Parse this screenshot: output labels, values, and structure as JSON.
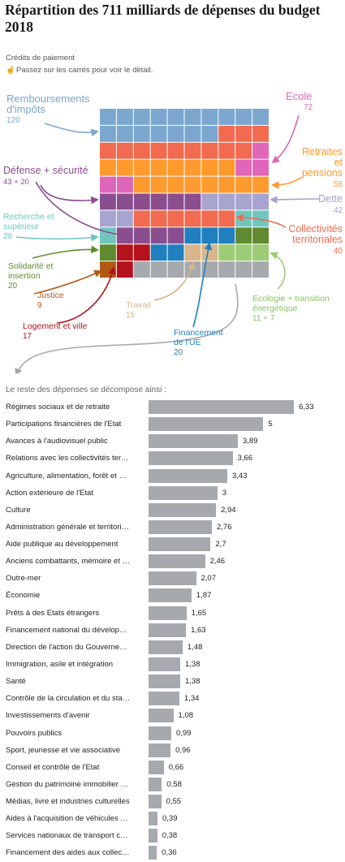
{
  "page": {
    "title": "Répartition des 711 milliards de dépenses du budget 2018",
    "subtitle": "Crédits de paiement",
    "hint": "Passez sur les carrés pour voir le détail.",
    "reste_label": "Le reste des dépenses se décompose ainsi :"
  },
  "chart_data": [
    {
      "type": "treemap-grid",
      "unit_note": "",
      "categories": [
        {
          "id": "remboursements",
          "label": "Remboursements d'impôts",
          "value_label": "120",
          "color": "#7ba7cf",
          "squares": 16
        },
        {
          "id": "ecole",
          "label": "Ecole",
          "value_label": "72",
          "color": "#e066b9",
          "squares": 3
        },
        {
          "id": "retraites",
          "label": "Retraites et pensions",
          "value_label": "58",
          "color": "#ff9a2e",
          "squares": 7
        },
        {
          "id": "defense",
          "label": "Défense + sécurité",
          "value_label": "43 + 20",
          "color": "#8a4e8f",
          "squares": 10
        },
        {
          "id": "dette",
          "label": "Dette",
          "value_label": "42",
          "color": "#a7a4cf",
          "squares": 6
        },
        {
          "id": "recherche",
          "label": "Recherche et supérieur",
          "value_label": "28",
          "color": "#6fc6bf",
          "squares": 3
        },
        {
          "id": "collectivites",
          "label": "Collectivités territoriales",
          "value_label": "40",
          "color": "#f26a4f",
          "squares": 16
        },
        {
          "id": "solidarite",
          "label": "Solidarité et insertion",
          "value_label": "20",
          "color": "#5f8a2f",
          "squares": 3
        },
        {
          "id": "justice",
          "label": "Justice",
          "value_label": "9",
          "color": "#b05a14",
          "squares": 1
        },
        {
          "id": "logement",
          "label": "Logement et ville",
          "value_label": "17",
          "color": "#b5121b",
          "squares": 2
        },
        {
          "id": "travail",
          "label": "Travail",
          "value_label": "15",
          "color": "#d8b58a",
          "squares": 2
        },
        {
          "id": "ue",
          "label": "Financement de l'UE",
          "value_label": "20",
          "color": "#1f7fbf",
          "squares": 3
        },
        {
          "id": "ecologie",
          "label": "Ecologie + transition énergétique",
          "value_label": "11 + 7",
          "color": "#9ccc75",
          "squares": 2
        },
        {
          "id": "reste",
          "label": "Le reste",
          "value_label": "",
          "color": "#a6a9ad",
          "squares": 8
        }
      ],
      "grid_rows": [
        [
          "remboursements",
          "remboursements",
          "remboursements",
          "remboursements",
          "remboursements",
          "remboursements",
          "remboursements",
          "remboursements",
          "remboursements",
          "remboursements"
        ],
        [
          "remboursements",
          "remboursements",
          "remboursements",
          "remboursements",
          "remboursements",
          "remboursements",
          "remboursements",
          "collectivites",
          "collectivites",
          "collectivites"
        ],
        [
          "collectivites",
          "collectivites",
          "collectivites",
          "collectivites",
          "collectivites",
          "collectivites",
          "collectivites",
          "collectivites",
          "collectivites",
          "ecole"
        ],
        [
          "retraites",
          "retraites",
          "retraites",
          "retraites",
          "retraites",
          "retraites",
          "retraites",
          "retraites",
          "ecole",
          "ecole"
        ],
        [
          "ecole",
          "ecole",
          "retraites",
          "retraites",
          "retraites",
          "retraites",
          "retraites",
          "retraites",
          "retraites",
          "retraites"
        ],
        [
          "defense",
          "defense",
          "defense",
          "defense",
          "defense",
          "defense",
          "dette",
          "dette",
          "dette",
          "dette"
        ],
        [
          "dette",
          "dette",
          "collectivites",
          "collectivites",
          "collectivites",
          "collectivites",
          "collectivites",
          "collectivites",
          "recherche",
          "recherche"
        ],
        [
          "recherche",
          "defense",
          "defense",
          "defense",
          "defense",
          "ue",
          "ue",
          "ue",
          "solidarite",
          "solidarite"
        ],
        [
          "solidarite",
          "logement",
          "logement",
          "ue",
          "ue",
          "travail",
          "travail",
          "ecologie",
          "ecologie",
          "ecologie"
        ],
        [
          "justice",
          "logement",
          "reste",
          "reste",
          "reste",
          "reste",
          "reste",
          "reste",
          "reste",
          "reste"
        ]
      ]
    },
    {
      "type": "bar",
      "orientation": "horizontal",
      "xlim": [
        0,
        6.33
      ],
      "categories": [
        "Régimes sociaux et de retraite",
        "Participations financières de l'Etat",
        "Avances à l'audiovisuel public",
        "Relations avec les collectivités ter…",
        "Agriculture, alimentation, forêt et …",
        "Action extérieure de l'Etat",
        "Culture",
        "Administration générale et territori…",
        "Aide publique au développement",
        "Anciens combattants, mémoire et …",
        "Outre-mer",
        "Économie",
        "Prêts à des Etats étrangers",
        "Financement national du dévelop…",
        "Direction de l'action du Gouverne…",
        "Immigration, asile et intégration",
        "Santé",
        "Contrôle de la circulation et du sta…",
        "Investissements d'avenir",
        "Pouvoirs publics",
        "Sport, jeunesse et vie associative",
        "Conseil et contrôle de l'Etat",
        "Gestion du patrimoine immobilier …",
        "Médias, livre et industries culturelles",
        "Aides à l'acquisition de véhicules …",
        "Services nationaux de transport c…",
        "Financement des aides aux collec…"
      ],
      "values": [
        6.33,
        5,
        3.89,
        3.66,
        3.43,
        3,
        2.94,
        2.76,
        2.7,
        2.46,
        2.07,
        1.87,
        1.65,
        1.63,
        1.48,
        1.38,
        1.38,
        1.34,
        1.08,
        0.99,
        0.96,
        0.66,
        0.58,
        0.55,
        0.39,
        0.38,
        0.36
      ],
      "value_labels": [
        "6,33",
        "5",
        "3,89",
        "3,66",
        "3,43",
        "3",
        "2,94",
        "2,76",
        "2,7",
        "2,46",
        "2,07",
        "1,87",
        "1,65",
        "1,63",
        "1,48",
        "1,38",
        "1,38",
        "1,34",
        "1,08",
        "0,99",
        "0,96",
        "0,66",
        "0,58",
        "0,55",
        "0,39",
        "0,38",
        "0,36"
      ],
      "bar_color": "#a6a9ad"
    }
  ]
}
